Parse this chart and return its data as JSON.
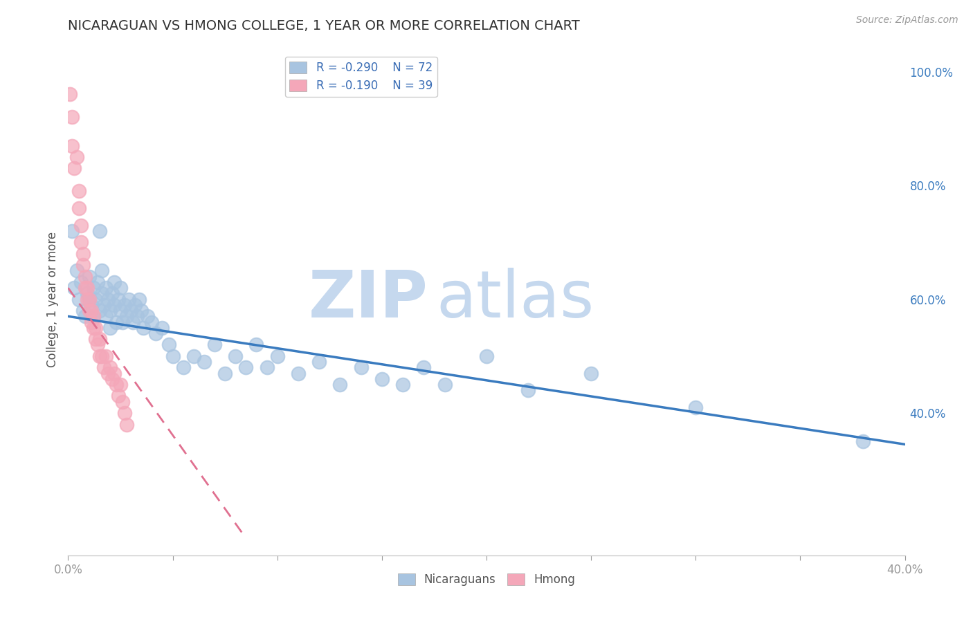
{
  "title": "NICARAGUAN VS HMONG COLLEGE, 1 YEAR OR MORE CORRELATION CHART",
  "source": "Source: ZipAtlas.com",
  "ylabel": "College, 1 year or more",
  "xlim": [
    0.0,
    0.4
  ],
  "ylim": [
    0.15,
    1.05
  ],
  "right_yticks": [
    0.4,
    0.6,
    0.8,
    1.0
  ],
  "right_yticklabels": [
    "40.0%",
    "60.0%",
    "80.0%",
    "100.0%"
  ],
  "nicaraguan_color": "#a8c4e0",
  "hmong_color": "#f4a7b9",
  "trend_nicaraguan_color": "#3a7bbf",
  "trend_hmong_color": "#e07090",
  "legend_R_nicaraguan": "R = -0.290",
  "legend_N_nicaraguan": "N = 72",
  "legend_R_hmong": "R = -0.190",
  "legend_N_hmong": "N = 39",
  "nicaraguan_x": [
    0.002,
    0.003,
    0.004,
    0.005,
    0.006,
    0.007,
    0.008,
    0.009,
    0.01,
    0.01,
    0.011,
    0.012,
    0.012,
    0.013,
    0.014,
    0.015,
    0.015,
    0.016,
    0.016,
    0.017,
    0.018,
    0.018,
    0.019,
    0.02,
    0.02,
    0.021,
    0.022,
    0.022,
    0.023,
    0.024,
    0.025,
    0.025,
    0.026,
    0.027,
    0.028,
    0.029,
    0.03,
    0.031,
    0.032,
    0.033,
    0.034,
    0.035,
    0.036,
    0.038,
    0.04,
    0.042,
    0.045,
    0.048,
    0.05,
    0.055,
    0.06,
    0.065,
    0.07,
    0.075,
    0.08,
    0.085,
    0.09,
    0.095,
    0.1,
    0.11,
    0.12,
    0.13,
    0.14,
    0.15,
    0.16,
    0.17,
    0.18,
    0.2,
    0.22,
    0.25,
    0.3,
    0.38
  ],
  "nicaraguan_y": [
    0.72,
    0.62,
    0.65,
    0.6,
    0.63,
    0.58,
    0.57,
    0.61,
    0.6,
    0.64,
    0.59,
    0.62,
    0.57,
    0.6,
    0.63,
    0.72,
    0.58,
    0.61,
    0.65,
    0.59,
    0.62,
    0.57,
    0.6,
    0.58,
    0.55,
    0.61,
    0.59,
    0.63,
    0.56,
    0.6,
    0.58,
    0.62,
    0.56,
    0.59,
    0.57,
    0.6,
    0.58,
    0.56,
    0.59,
    0.57,
    0.6,
    0.58,
    0.55,
    0.57,
    0.56,
    0.54,
    0.55,
    0.52,
    0.5,
    0.48,
    0.5,
    0.49,
    0.52,
    0.47,
    0.5,
    0.48,
    0.52,
    0.48,
    0.5,
    0.47,
    0.49,
    0.45,
    0.48,
    0.46,
    0.45,
    0.48,
    0.45,
    0.5,
    0.44,
    0.47,
    0.41,
    0.35
  ],
  "hmong_x": [
    0.001,
    0.002,
    0.002,
    0.003,
    0.004,
    0.005,
    0.005,
    0.006,
    0.006,
    0.007,
    0.007,
    0.008,
    0.008,
    0.009,
    0.009,
    0.01,
    0.01,
    0.011,
    0.011,
    0.012,
    0.012,
    0.013,
    0.013,
    0.014,
    0.015,
    0.015,
    0.016,
    0.017,
    0.018,
    0.019,
    0.02,
    0.021,
    0.022,
    0.023,
    0.024,
    0.025,
    0.026,
    0.027,
    0.028
  ],
  "hmong_y": [
    0.96,
    0.92,
    0.87,
    0.83,
    0.85,
    0.79,
    0.76,
    0.73,
    0.7,
    0.68,
    0.66,
    0.64,
    0.62,
    0.6,
    0.62,
    0.6,
    0.58,
    0.56,
    0.58,
    0.55,
    0.57,
    0.53,
    0.55,
    0.52,
    0.5,
    0.53,
    0.5,
    0.48,
    0.5,
    0.47,
    0.48,
    0.46,
    0.47,
    0.45,
    0.43,
    0.45,
    0.42,
    0.4,
    0.38
  ],
  "watermark_zip": "ZIP",
  "watermark_atlas": "atlas",
  "watermark_color": "#c5d8ee",
  "background_color": "#ffffff",
  "grid_color": "#cccccc",
  "title_color": "#333333",
  "axis_color": "#999999",
  "label_color": "#555555"
}
